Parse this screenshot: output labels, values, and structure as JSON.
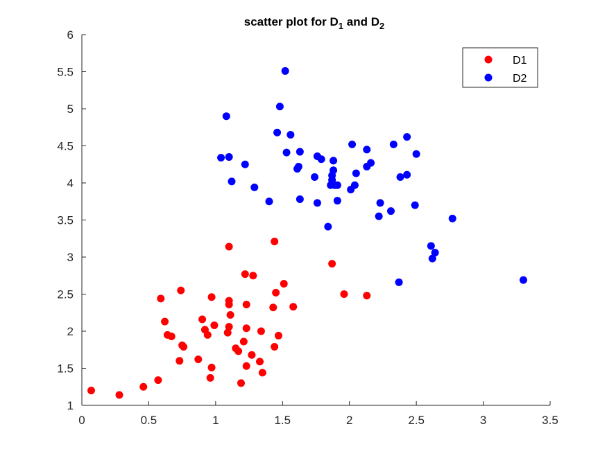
{
  "chart_data": {
    "type": "scatter",
    "title": "scatter plot for D",
    "title_parts": [
      {
        "text": "scatter plot for D",
        "sub": false
      },
      {
        "text": "1",
        "sub": true
      },
      {
        "text": " and D",
        "sub": false
      },
      {
        "text": "2",
        "sub": true
      }
    ],
    "xlabel": "",
    "ylabel": "",
    "xlim": [
      0,
      3.5
    ],
    "ylim": [
      1,
      6
    ],
    "xticks": [
      0,
      0.5,
      1,
      1.5,
      2,
      2.5,
      3,
      3.5
    ],
    "xtick_labels": [
      "0",
      "0.5",
      "1",
      "1.5",
      "2",
      "2.5",
      "3",
      "3.5"
    ],
    "yticks": [
      1,
      1.5,
      2,
      2.5,
      3,
      3.5,
      4,
      4.5,
      5,
      5.5,
      6
    ],
    "ytick_labels": [
      "1",
      "1.5",
      "2",
      "2.5",
      "3",
      "3.5",
      "4",
      "4.5",
      "5",
      "5.5",
      "6"
    ],
    "grid": false,
    "legend_position": "top-right",
    "series": [
      {
        "name": "D1",
        "color": "#ff0000",
        "points": [
          [
            0.07,
            1.2
          ],
          [
            0.28,
            1.14
          ],
          [
            0.46,
            1.25
          ],
          [
            0.57,
            1.34
          ],
          [
            0.59,
            2.44
          ],
          [
            0.62,
            2.13
          ],
          [
            0.64,
            1.95
          ],
          [
            0.67,
            1.93
          ],
          [
            0.73,
            1.6
          ],
          [
            0.74,
            2.55
          ],
          [
            0.75,
            1.81
          ],
          [
            0.76,
            1.79
          ],
          [
            0.87,
            1.62
          ],
          [
            0.9,
            2.16
          ],
          [
            0.92,
            2.02
          ],
          [
            0.94,
            1.95
          ],
          [
            0.96,
            1.37
          ],
          [
            0.97,
            1.51
          ],
          [
            0.97,
            2.46
          ],
          [
            0.99,
            2.08
          ],
          [
            1.09,
            1.98
          ],
          [
            1.1,
            2.06
          ],
          [
            1.1,
            2.36
          ],
          [
            1.1,
            2.41
          ],
          [
            1.1,
            3.14
          ],
          [
            1.11,
            2.22
          ],
          [
            1.15,
            1.77
          ],
          [
            1.17,
            1.73
          ],
          [
            1.19,
            1.3
          ],
          [
            1.21,
            1.86
          ],
          [
            1.22,
            2.77
          ],
          [
            1.23,
            2.04
          ],
          [
            1.23,
            2.36
          ],
          [
            1.23,
            1.53
          ],
          [
            1.27,
            1.68
          ],
          [
            1.28,
            2.75
          ],
          [
            1.33,
            1.59
          ],
          [
            1.34,
            2.0
          ],
          [
            1.35,
            1.44
          ],
          [
            1.43,
            2.32
          ],
          [
            1.44,
            1.79
          ],
          [
            1.44,
            3.21
          ],
          [
            1.45,
            2.52
          ],
          [
            1.47,
            1.94
          ],
          [
            1.51,
            2.64
          ],
          [
            1.58,
            2.33
          ],
          [
            1.87,
            2.91
          ],
          [
            1.96,
            2.5
          ],
          [
            2.13,
            2.48
          ]
        ]
      },
      {
        "name": "D2",
        "color": "#0000ff",
        "points": [
          [
            1.04,
            4.34
          ],
          [
            1.08,
            4.9
          ],
          [
            1.1,
            4.35
          ],
          [
            1.12,
            4.02
          ],
          [
            1.22,
            4.25
          ],
          [
            1.29,
            3.94
          ],
          [
            1.4,
            3.75
          ],
          [
            1.46,
            4.68
          ],
          [
            1.48,
            5.03
          ],
          [
            1.52,
            5.51
          ],
          [
            1.53,
            4.41
          ],
          [
            1.56,
            4.65
          ],
          [
            1.61,
            4.19
          ],
          [
            1.62,
            4.22
          ],
          [
            1.63,
            4.42
          ],
          [
            1.63,
            3.78
          ],
          [
            1.74,
            4.08
          ],
          [
            1.76,
            4.36
          ],
          [
            1.76,
            3.73
          ],
          [
            1.79,
            4.32
          ],
          [
            1.84,
            3.41
          ],
          [
            1.86,
            3.97
          ],
          [
            1.87,
            4.04
          ],
          [
            1.87,
            4.1
          ],
          [
            1.88,
            4.17
          ],
          [
            1.88,
            4.3
          ],
          [
            1.89,
            3.97
          ],
          [
            1.91,
            3.76
          ],
          [
            1.91,
            3.97
          ],
          [
            2.01,
            3.91
          ],
          [
            2.02,
            4.52
          ],
          [
            2.04,
            3.97
          ],
          [
            2.05,
            4.13
          ],
          [
            2.13,
            4.45
          ],
          [
            2.13,
            4.22
          ],
          [
            2.16,
            4.27
          ],
          [
            2.22,
            3.55
          ],
          [
            2.23,
            3.73
          ],
          [
            2.31,
            3.62
          ],
          [
            2.33,
            4.52
          ],
          [
            2.37,
            2.66
          ],
          [
            2.38,
            4.08
          ],
          [
            2.43,
            4.62
          ],
          [
            2.43,
            4.11
          ],
          [
            2.49,
            3.7
          ],
          [
            2.5,
            4.39
          ],
          [
            2.61,
            3.15
          ],
          [
            2.62,
            2.98
          ],
          [
            2.64,
            3.06
          ],
          [
            2.77,
            3.52
          ],
          [
            3.3,
            2.69
          ]
        ]
      }
    ]
  }
}
